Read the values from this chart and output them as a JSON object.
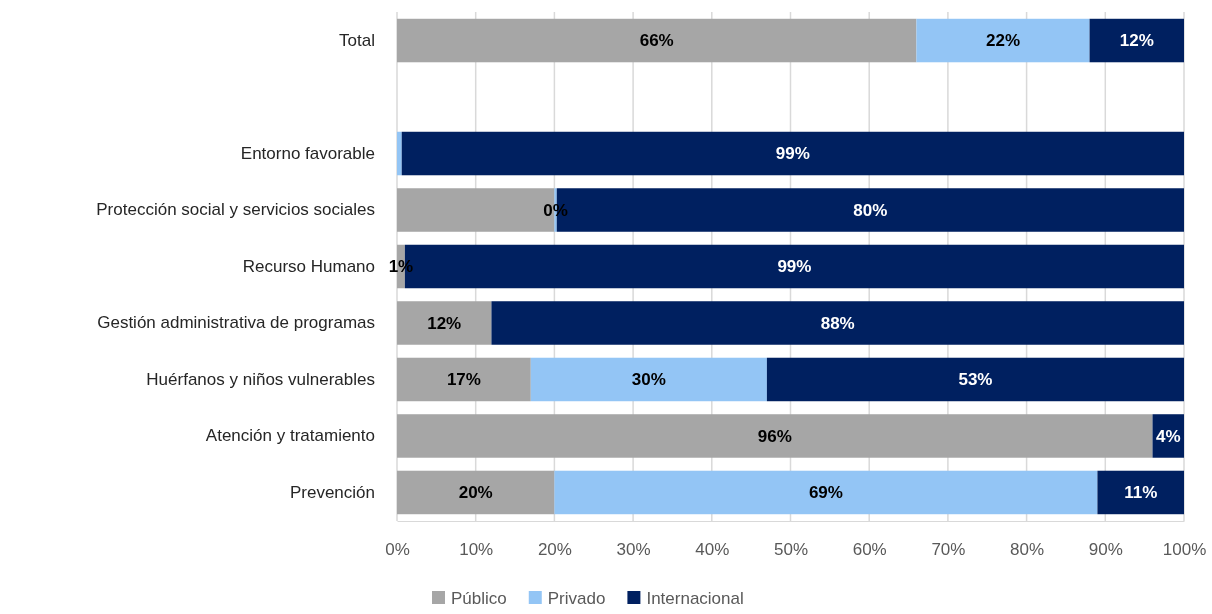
{
  "chart_data": {
    "type": "bar",
    "orientation": "horizontal",
    "stacked": true,
    "categories": [
      "Total",
      null,
      "Entorno favorable",
      "Protección social y servicios sociales",
      "Recurso Humano",
      "Gestión administrativa de programas",
      "Huérfanos y niños vulnerables",
      "Atención y tratamiento",
      "Prevención"
    ],
    "series": [
      {
        "name": "Público",
        "color": "#a6a6a6",
        "values": [
          66,
          null,
          0,
          20,
          1,
          12,
          17,
          96,
          20
        ],
        "value_labels": [
          "66%",
          null,
          null,
          null,
          "1%",
          "12%",
          "17%",
          "96%",
          "20%"
        ]
      },
      {
        "name": "Privado",
        "color": "#93c5f5",
        "values": [
          22,
          null,
          0.6,
          0.3,
          0,
          0,
          30,
          0,
          69
        ],
        "value_labels": [
          "22%",
          null,
          null,
          "0%",
          null,
          null,
          "30%",
          null,
          "69%"
        ]
      },
      {
        "name": "Internacional",
        "color": "#002060",
        "values": [
          12,
          null,
          99.4,
          79.7,
          99,
          88,
          53,
          4,
          11
        ],
        "value_labels": [
          "12%",
          null,
          "99%",
          "80%",
          "99%",
          "88%",
          "53%",
          "4%",
          "11%"
        ]
      }
    ],
    "xlim": [
      0,
      100
    ],
    "xticks": [
      {
        "value": 0,
        "label": "0%"
      },
      {
        "value": 10,
        "label": "10%"
      },
      {
        "value": 20,
        "label": "20%"
      },
      {
        "value": 30,
        "label": "30%"
      },
      {
        "value": 40,
        "label": "40%"
      },
      {
        "value": 50,
        "label": "50%"
      },
      {
        "value": 60,
        "label": "60%"
      },
      {
        "value": 70,
        "label": "70%"
      },
      {
        "value": 80,
        "label": "80%"
      },
      {
        "value": 90,
        "label": "90%"
      },
      {
        "value": 100,
        "label": "100%"
      }
    ],
    "grid": "x",
    "legend": "bottom"
  }
}
